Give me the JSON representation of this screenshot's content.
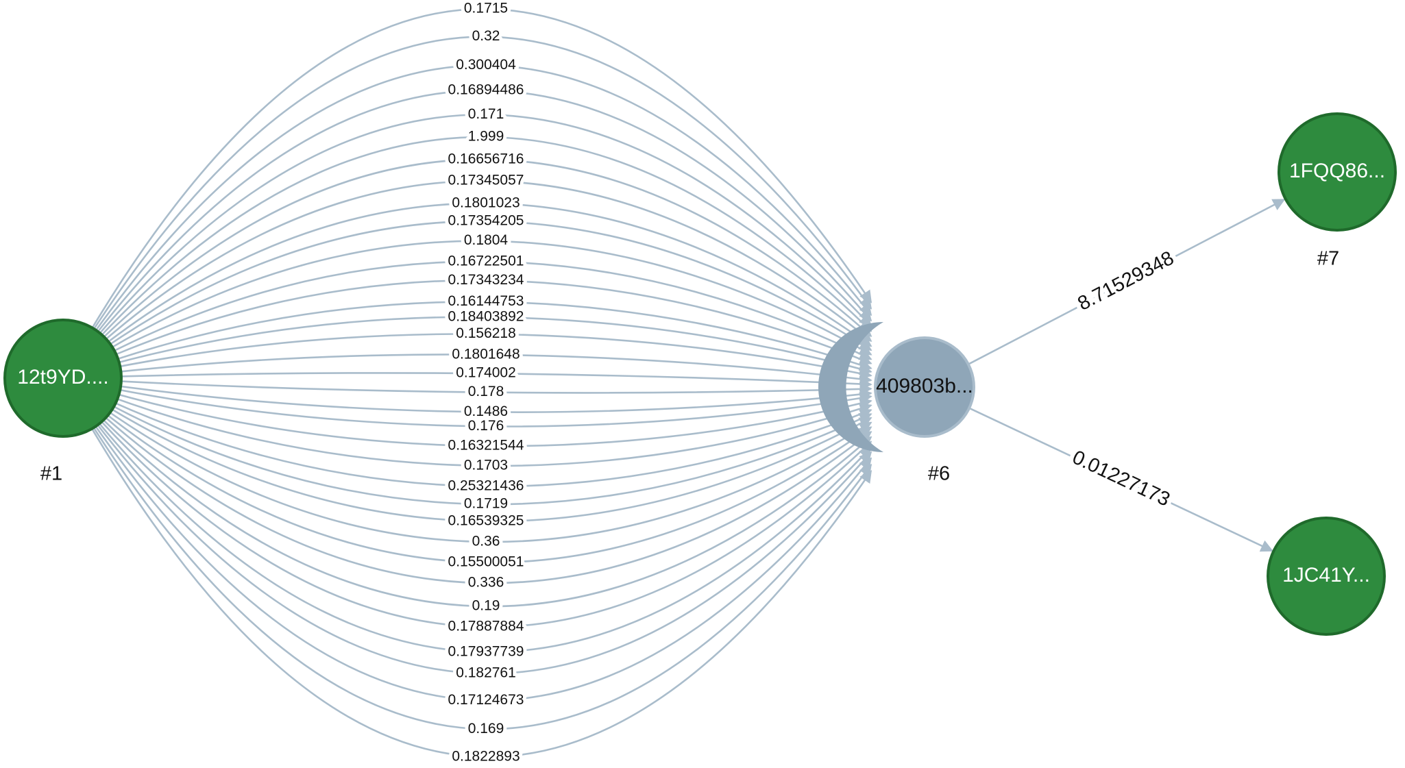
{
  "nodes": [
    {
      "id": "#1",
      "label": "12t9YD....",
      "color": "#2e8b3e",
      "type": "address"
    },
    {
      "id": "#6",
      "label": "409803b...",
      "color": "#8fa6b8",
      "type": "transaction"
    },
    {
      "id": "#7",
      "label": "1FQQ86...",
      "color": "#2e8b3e",
      "type": "address"
    },
    {
      "id": "#8",
      "label": "1JC41Y...",
      "color": "#2e8b3e",
      "type": "address"
    }
  ],
  "edges_1_to_6": [
    "0.1715",
    "0.32",
    "0.300404",
    "0.16894486",
    "0.171",
    "1.999",
    "0.16656716",
    "0.17345057",
    "0.1801023",
    "0.17354205",
    "0.1804",
    "0.16722501",
    "0.17343234",
    "0.16144753",
    "0.18403892",
    "0.156218",
    "0.1801648",
    "0.174002",
    "0.178",
    "0.1486",
    "0.176",
    "0.16321544",
    "0.1703",
    "0.25321436",
    "0.1719",
    "0.16539325",
    "0.36",
    "0.15500051",
    "0.336",
    "0.19",
    "0.17887884",
    "0.17937739",
    "0.182761",
    "0.17124673",
    "0.169",
    "0.1822893"
  ],
  "edges_out": [
    {
      "from": "#6",
      "to": "#7",
      "label": "8.71529348"
    },
    {
      "from": "#6",
      "to": "#8",
      "label": "0.01227173"
    }
  ],
  "colors": {
    "edge": "#a9bccb",
    "address_node": "#2e8b3e",
    "transaction_node": "#8fa6b8"
  }
}
